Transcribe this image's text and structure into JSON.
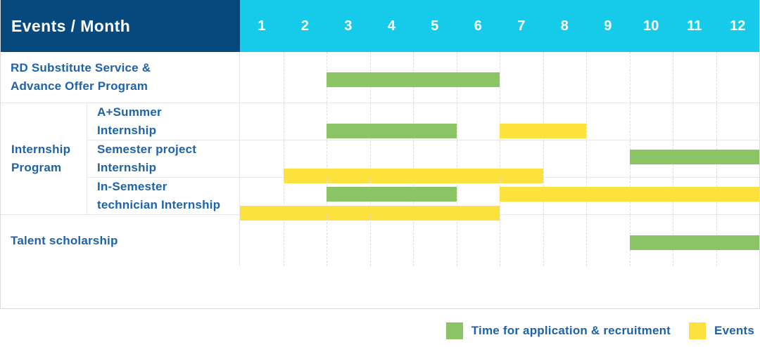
{
  "header": {
    "title": "Events / Month",
    "months": [
      "1",
      "2",
      "3",
      "4",
      "5",
      "6",
      "7",
      "8",
      "9",
      "10",
      "11",
      "12"
    ]
  },
  "groups": {
    "internship": {
      "label_lines": [
        "Internship",
        "Program"
      ]
    }
  },
  "rows": [
    {
      "id": "rd-substitute",
      "label_lines": [
        "RD Substitute Service &",
        "Advance Offer Program"
      ],
      "group": null,
      "bars": [
        {
          "color": "green",
          "start": 3,
          "end": 6,
          "line": "single"
        }
      ]
    },
    {
      "id": "a-summer-internship",
      "label_lines": [
        "A+Summer",
        "Internship"
      ],
      "group": "internship",
      "bars": [
        {
          "color": "green",
          "start": 3,
          "end": 5,
          "line": "single"
        },
        {
          "color": "yellow",
          "start": 7,
          "end": 8,
          "line": "single"
        }
      ]
    },
    {
      "id": "semester-project-internship",
      "label_lines": [
        "Semester project",
        "Internship"
      ],
      "group": "internship",
      "bars": [
        {
          "color": "green",
          "start": 10,
          "end": 12,
          "line": "upper"
        },
        {
          "color": "yellow",
          "start": 2,
          "end": 7,
          "line": "lower"
        }
      ]
    },
    {
      "id": "in-semester-technician-internship",
      "label_lines": [
        "In-Semester",
        "technician Internship"
      ],
      "group": "internship",
      "bars": [
        {
          "color": "green",
          "start": 3,
          "end": 5,
          "line": "upper"
        },
        {
          "color": "yellow",
          "start": 7,
          "end": 12,
          "line": "upper"
        },
        {
          "color": "yellow",
          "start": 1,
          "end": 6,
          "line": "lower"
        }
      ]
    },
    {
      "id": "talent-scholarship",
      "label_lines": [
        "Talent scholarship"
      ],
      "group": null,
      "bars": [
        {
          "color": "green",
          "start": 10,
          "end": 12,
          "line": "single"
        }
      ]
    }
  ],
  "legend": {
    "items": [
      {
        "color": "green",
        "label": "Time for application & recruitment"
      },
      {
        "color": "yellow",
        "label": "Events"
      }
    ]
  },
  "colors": {
    "header_bg": "#05497f",
    "months_bg": "#16cbe9",
    "green": "#8ac464",
    "yellow": "#fde23e",
    "label_text": "#1e63a8",
    "header_text": "#ffffff",
    "gridline": "#dddddd"
  },
  "chart_data": {
    "type": "table",
    "subtype": "gantt-timeline",
    "title": "Events / Month",
    "x_unit": "month",
    "x_range": [
      1,
      12
    ],
    "x_ticks": [
      1,
      2,
      3,
      4,
      5,
      6,
      7,
      8,
      9,
      10,
      11,
      12
    ],
    "grid": true,
    "legend_position": "bottom-right",
    "categories": [
      "RD Substitute Service & Advance Offer Program",
      "A+Summer Internship",
      "Semester project Internship",
      "In-Semester technician Internship",
      "Talent scholarship"
    ],
    "category_group": {
      "name": "Internship Program",
      "members": [
        "A+Summer Internship",
        "Semester project Internship",
        "In-Semester technician Internship"
      ]
    },
    "series": [
      {
        "name": "Time for application & recruitment",
        "color": "#8ac464",
        "spans": [
          {
            "row": "RD Substitute Service & Advance Offer Program",
            "months": [
              3,
              6
            ]
          },
          {
            "row": "A+Summer Internship",
            "months": [
              3,
              5
            ]
          },
          {
            "row": "Semester project Internship",
            "months": [
              10,
              12
            ]
          },
          {
            "row": "In-Semester technician Internship",
            "months": [
              3,
              5
            ]
          },
          {
            "row": "Talent scholarship",
            "months": [
              10,
              12
            ]
          }
        ]
      },
      {
        "name": "Events",
        "color": "#fde23e",
        "spans": [
          {
            "row": "A+Summer Internship",
            "months": [
              7,
              8
            ]
          },
          {
            "row": "Semester project Internship",
            "months": [
              2,
              7
            ]
          },
          {
            "row": "In-Semester technician Internship",
            "months": [
              1,
              6
            ]
          },
          {
            "row": "In-Semester technician Internship",
            "months": [
              7,
              12
            ]
          }
        ]
      }
    ]
  }
}
